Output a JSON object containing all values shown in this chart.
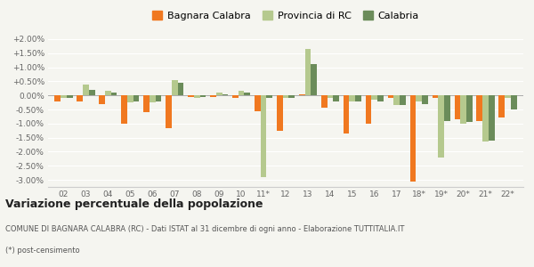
{
  "categories": [
    "02",
    "03",
    "04",
    "05",
    "06",
    "07",
    "08",
    "09",
    "10",
    "11*",
    "12",
    "13",
    "14",
    "15",
    "16",
    "17",
    "18*",
    "19*",
    "20*",
    "21*",
    "22*"
  ],
  "bagnara": [
    -0.002,
    -0.002,
    -0.003,
    -0.01,
    -0.006,
    -0.0115,
    -0.0005,
    -0.0005,
    -0.001,
    -0.0055,
    -0.0125,
    0.0005,
    -0.0045,
    -0.0135,
    -0.01,
    -0.001,
    -0.0305,
    -0.001,
    -0.0085,
    -0.009,
    -0.008
  ],
  "provincia": [
    -0.001,
    0.004,
    0.0015,
    -0.0025,
    -0.0025,
    0.0055,
    -0.001,
    0.001,
    0.0015,
    -0.029,
    -0.001,
    0.0165,
    -0.001,
    -0.002,
    -0.0015,
    -0.0035,
    -0.002,
    -0.022,
    -0.01,
    -0.0165,
    -0.001
  ],
  "calabria": [
    -0.001,
    0.002,
    0.001,
    -0.002,
    -0.002,
    0.0045,
    -0.0005,
    0.0005,
    0.001,
    -0.001,
    -0.001,
    0.011,
    -0.002,
    -0.002,
    -0.002,
    -0.0035,
    -0.003,
    -0.009,
    -0.0095,
    -0.016,
    -0.005
  ],
  "color_bagnara": "#f07820",
  "color_provincia": "#b5c98e",
  "color_calabria": "#6b8c5a",
  "ylim_min": -0.0325,
  "ylim_max": 0.0225,
  "ytick_vals": [
    -0.03,
    -0.025,
    -0.02,
    -0.015,
    -0.01,
    -0.005,
    0.0,
    0.005,
    0.01,
    0.015,
    0.02
  ],
  "ytick_labels": [
    "-3.00%",
    "-2.50%",
    "-2.00%",
    "-1.50%",
    "-1.00%",
    "-0.50%",
    "0.00%",
    "+0.50%",
    "+1.00%",
    "+1.50%",
    "+2.00%"
  ],
  "title": "Variazione percentuale della popolazione",
  "legend_labels": [
    "Bagnara Calabra",
    "Provincia di RC",
    "Calabria"
  ],
  "footnote1": "COMUNE DI BAGNARA CALABRA (RC) - Dati ISTAT al 31 dicembre di ogni anno - Elaborazione TUTTITALIA.IT",
  "footnote2": "(*) post-censimento",
  "background_color": "#f5f5f0",
  "bar_width": 0.27
}
